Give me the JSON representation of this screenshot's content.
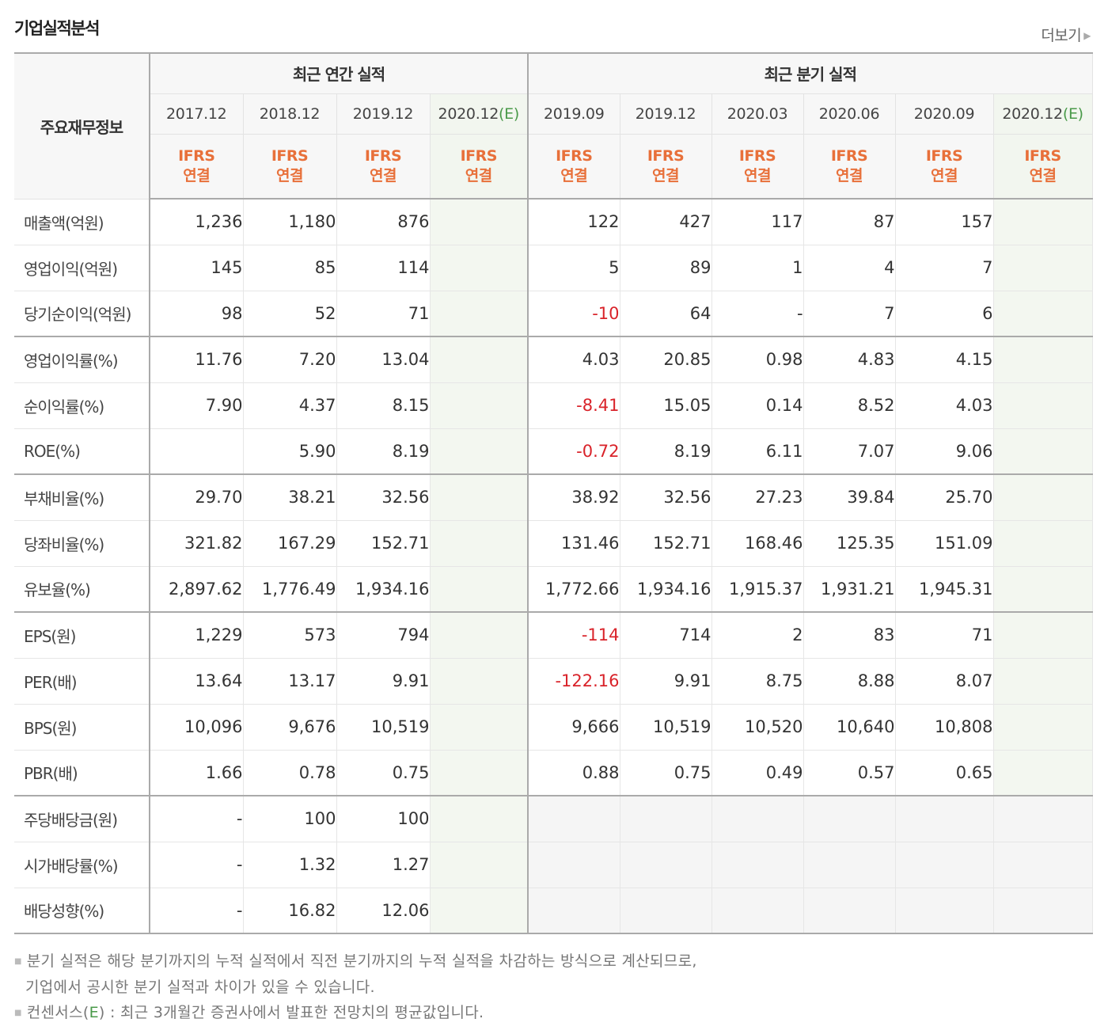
{
  "title": "기업실적분석",
  "more_label": "더보기",
  "header": {
    "row_header": "주요재무정보",
    "annual_title": "최근 연간 실적",
    "quarterly_title": "최근 분기 실적",
    "ifrs_line1": "IFRS",
    "ifrs_line2": "연결",
    "est_mark": "(E)",
    "annual_periods": [
      "2017.12",
      "2018.12",
      "2019.12",
      "2020.12"
    ],
    "quarterly_periods": [
      "2019.09",
      "2019.12",
      "2020.03",
      "2020.06",
      "2020.09",
      "2020.12"
    ]
  },
  "rows": [
    {
      "label": "매출액(억원)",
      "values": [
        "1,236",
        "1,180",
        "876",
        "",
        "122",
        "427",
        "117",
        "87",
        "157",
        ""
      ]
    },
    {
      "label": "영업이익(억원)",
      "values": [
        "145",
        "85",
        "114",
        "",
        "5",
        "89",
        "1",
        "4",
        "7",
        ""
      ]
    },
    {
      "label": "당기순이익(억원)",
      "values": [
        "98",
        "52",
        "71",
        "",
        "-10",
        "64",
        "-",
        "7",
        "6",
        ""
      ]
    },
    {
      "label": "영업이익률(%)",
      "values": [
        "11.76",
        "7.20",
        "13.04",
        "",
        "4.03",
        "20.85",
        "0.98",
        "4.83",
        "4.15",
        ""
      ]
    },
    {
      "label": "순이익률(%)",
      "values": [
        "7.90",
        "4.37",
        "8.15",
        "",
        "-8.41",
        "15.05",
        "0.14",
        "8.52",
        "4.03",
        ""
      ]
    },
    {
      "label": "ROE(%)",
      "values": [
        "",
        "5.90",
        "8.19",
        "",
        "-0.72",
        "8.19",
        "6.11",
        "7.07",
        "9.06",
        ""
      ]
    },
    {
      "label": "부채비율(%)",
      "values": [
        "29.70",
        "38.21",
        "32.56",
        "",
        "38.92",
        "32.56",
        "27.23",
        "39.84",
        "25.70",
        ""
      ]
    },
    {
      "label": "당좌비율(%)",
      "values": [
        "321.82",
        "167.29",
        "152.71",
        "",
        "131.46",
        "152.71",
        "168.46",
        "125.35",
        "151.09",
        ""
      ]
    },
    {
      "label": "유보율(%)",
      "values": [
        "2,897.62",
        "1,776.49",
        "1,934.16",
        "",
        "1,772.66",
        "1,934.16",
        "1,915.37",
        "1,931.21",
        "1,945.31",
        ""
      ]
    },
    {
      "label": "EPS(원)",
      "values": [
        "1,229",
        "573",
        "794",
        "",
        "-114",
        "714",
        "2",
        "83",
        "71",
        ""
      ]
    },
    {
      "label": "PER(배)",
      "values": [
        "13.64",
        "13.17",
        "9.91",
        "",
        "-122.16",
        "9.91",
        "8.75",
        "8.88",
        "8.07",
        ""
      ]
    },
    {
      "label": "BPS(원)",
      "values": [
        "10,096",
        "9,676",
        "10,519",
        "",
        "9,666",
        "10,519",
        "10,520",
        "10,640",
        "10,808",
        ""
      ]
    },
    {
      "label": "PBR(배)",
      "values": [
        "1.66",
        "0.78",
        "0.75",
        "",
        "0.88",
        "0.75",
        "0.49",
        "0.57",
        "0.65",
        ""
      ]
    },
    {
      "label": "주당배당금(원)",
      "values": [
        "-",
        "100",
        "100",
        "",
        "",
        "",
        "",
        "",
        "",
        ""
      ]
    },
    {
      "label": "시가배당률(%)",
      "values": [
        "-",
        "1.32",
        "1.27",
        "",
        "",
        "",
        "",
        "",
        "",
        ""
      ]
    },
    {
      "label": "배당성향(%)",
      "values": [
        "-",
        "16.82",
        "12.06",
        "",
        "",
        "",
        "",
        "",
        "",
        ""
      ]
    }
  ],
  "notes": {
    "line1": "분기 실적은 해당 분기까지의 누적 실적에서 직전 분기까지의 누적 실적을 차감하는 방식으로 계산되므로,",
    "line2": "기업에서 공시한 분기 실적과 차이가 있을 수 있습니다.",
    "line3_pre": "컨센서스(",
    "line3_e": "E",
    "line3_post": ") : 최근 3개월간 증권사에서 발표한 전망치의 평균값입니다."
  },
  "colors": {
    "negative": "#d9232a",
    "ifrs": "#e8703a",
    "estimate": "#4a9a4a",
    "estimate_bg": "#f3f7f0"
  }
}
